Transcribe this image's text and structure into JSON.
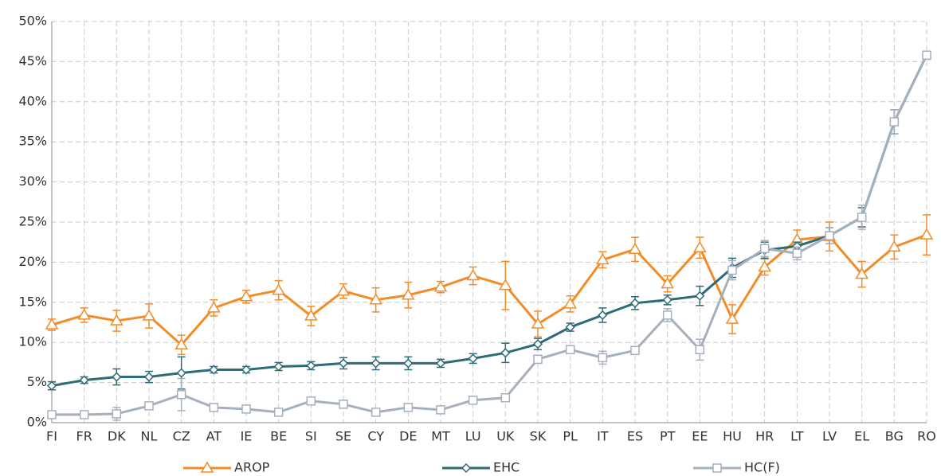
{
  "chart_data": {
    "type": "line",
    "categories": [
      "FI",
      "FR",
      "DK",
      "NL",
      "CZ",
      "AT",
      "IE",
      "BE",
      "SI",
      "SE",
      "CY",
      "DE",
      "MT",
      "LU",
      "UK",
      "SK",
      "PL",
      "IT",
      "ES",
      "PT",
      "EE",
      "HU",
      "HR",
      "LT",
      "LV",
      "EL",
      "BG",
      "RO"
    ],
    "ylim": [
      0,
      50
    ],
    "yticks": [
      {
        "value": 0,
        "label": "0%"
      },
      {
        "value": 5,
        "label": "5%"
      },
      {
        "value": 10,
        "label": "10%"
      },
      {
        "value": 15,
        "label": "15%"
      },
      {
        "value": 20,
        "label": "20%"
      },
      {
        "value": 25,
        "label": "25%"
      },
      {
        "value": 30,
        "label": "30%"
      },
      {
        "value": 35,
        "label": "35%"
      },
      {
        "value": 40,
        "label": "40%"
      },
      {
        "value": 45,
        "label": "45%"
      },
      {
        "value": 50,
        "label": "50%"
      }
    ],
    "grid": true,
    "legend": "bottom",
    "series": [
      {
        "name": "AROP",
        "color": "#f28c28",
        "marker": "triangle",
        "values": [
          12.2,
          13.4,
          12.7,
          13.3,
          9.7,
          14.3,
          15.7,
          16.5,
          13.3,
          16.4,
          15.3,
          15.9,
          16.9,
          18.3,
          17.1,
          12.3,
          14.8,
          20.3,
          21.6,
          17.3,
          21.8,
          12.9,
          19.4,
          22.8,
          23.2,
          18.5,
          21.9,
          23.4
        ],
        "errors": [
          0.7,
          0.9,
          1.3,
          1.5,
          1.2,
          1.0,
          0.8,
          1.2,
          1.2,
          0.9,
          1.5,
          1.6,
          0.7,
          1.1,
          3.0,
          1.6,
          1.0,
          1.0,
          1.5,
          1.0,
          1.3,
          1.8,
          1.0,
          1.2,
          1.8,
          1.6,
          1.5,
          2.5
        ]
      },
      {
        "name": "EHC",
        "color": "#2e6b78",
        "marker": "diamond",
        "values": [
          4.6,
          5.3,
          5.7,
          5.7,
          6.2,
          6.6,
          6.6,
          7.0,
          7.1,
          7.4,
          7.4,
          7.4,
          7.4,
          8.0,
          8.7,
          9.8,
          11.9,
          13.4,
          14.9,
          15.3,
          15.8,
          19.3,
          21.5,
          22.0,
          23.3,
          25.6,
          37.5,
          45.8
        ],
        "errors": [
          0.5,
          0.4,
          1.0,
          0.7,
          2.0,
          0.4,
          0.4,
          0.5,
          0.5,
          0.7,
          0.8,
          0.8,
          0.5,
          0.6,
          1.2,
          0.7,
          0.5,
          0.9,
          0.8,
          0.6,
          1.2,
          1.2,
          1.0,
          0.5,
          1.0,
          1.2,
          1.5,
          0.5
        ]
      },
      {
        "name": "HC(F)",
        "color": "#a6b0bc",
        "marker": "square",
        "values": [
          1.0,
          1.0,
          1.1,
          2.1,
          3.5,
          1.9,
          1.7,
          1.3,
          2.7,
          2.3,
          1.3,
          1.9,
          1.6,
          2.8,
          3.1,
          7.9,
          9.1,
          8.1,
          9.0,
          13.4,
          9.1,
          19.0,
          21.7,
          21.1,
          23.3,
          25.6,
          37.5,
          45.8
        ],
        "errors": [
          0.3,
          0.3,
          0.8,
          0.4,
          2.0,
          0.3,
          0.3,
          0.3,
          0.4,
          0.5,
          0.3,
          0.4,
          0.3,
          0.4,
          0.3,
          0.5,
          0.5,
          0.8,
          0.5,
          0.8,
          1.3,
          1.2,
          1.0,
          0.8,
          1.0,
          1.5,
          1.5,
          0.5
        ]
      }
    ]
  }
}
